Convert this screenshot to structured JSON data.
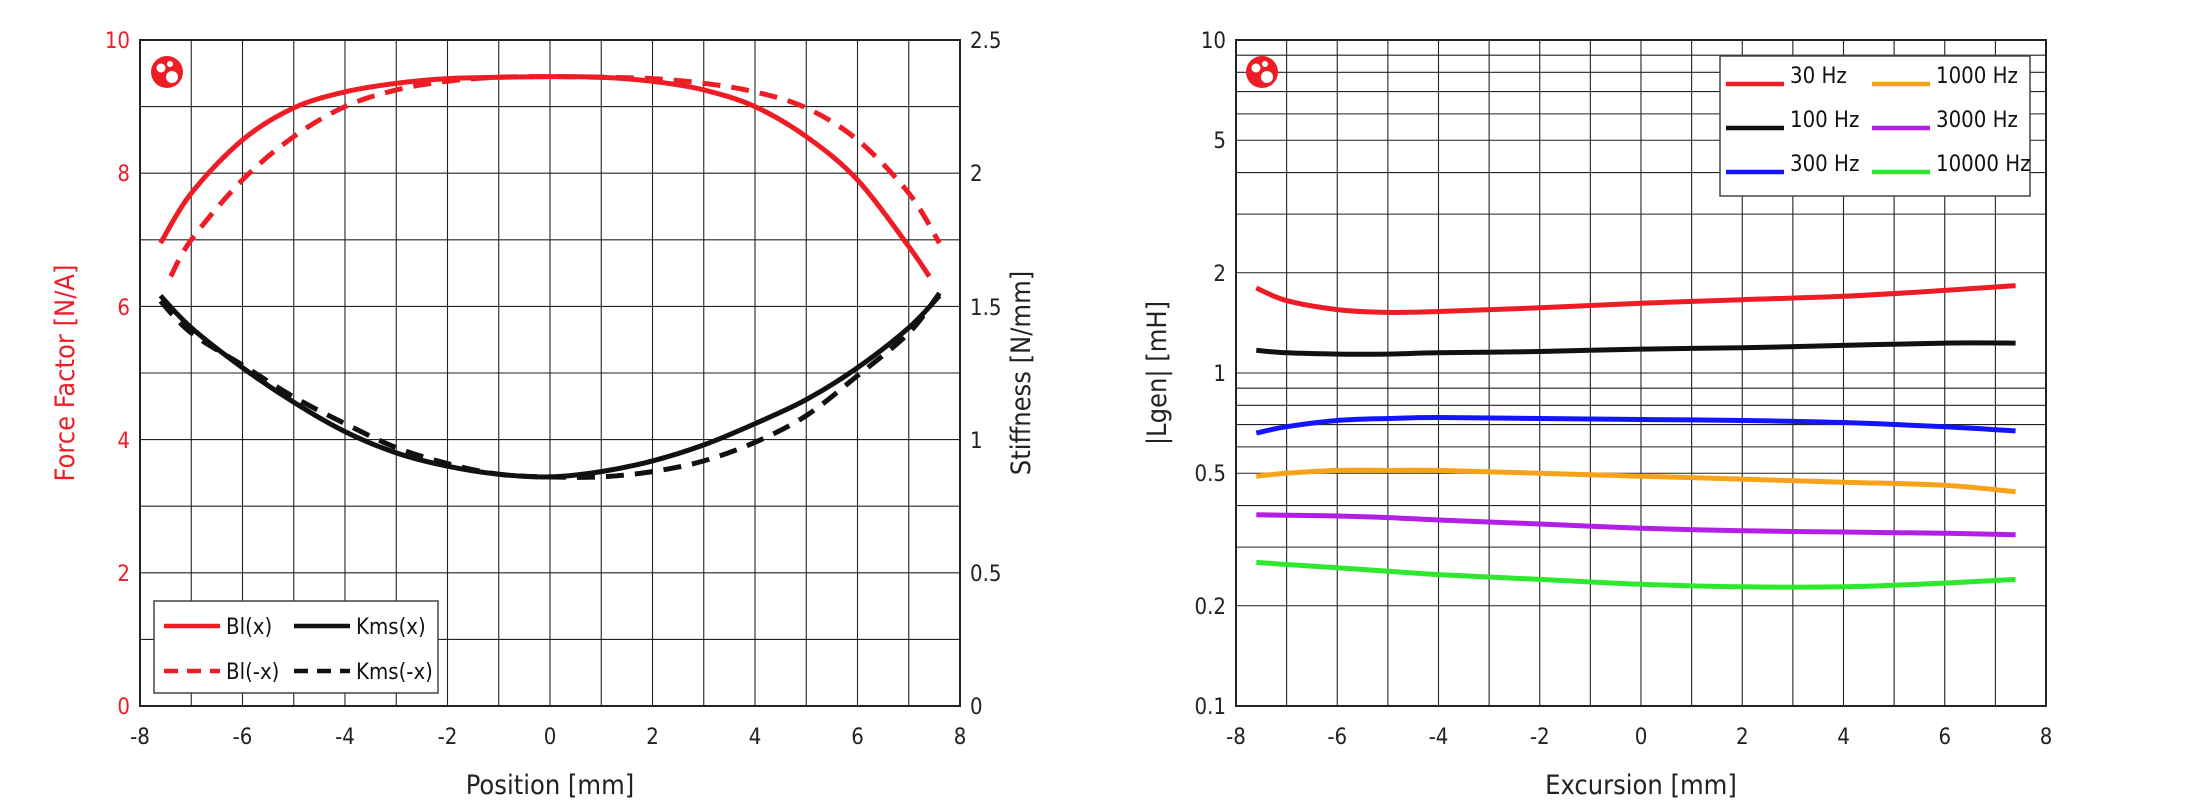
{
  "colors": {
    "red": "#ee1c25",
    "black": "#111111",
    "blue": "#1414ff",
    "orange": "#f7a21b",
    "purple": "#b21fe6",
    "green": "#2ee82e",
    "grid": "#222222"
  },
  "chart_data": [
    {
      "type": "line",
      "title": "",
      "xlabel": "Position [mm]",
      "ylabel": "Force Factor [N/A]",
      "y2label": "Stiffness [N/mm]",
      "xlim": [
        -8,
        8
      ],
      "ylim": [
        0,
        10
      ],
      "y2lim": [
        0,
        2.5
      ],
      "xticks": [
        "-8",
        "-6",
        "-4",
        "-2",
        "0",
        "2",
        "4",
        "6",
        "8"
      ],
      "yticks": [
        "0",
        "2",
        "4",
        "6",
        "8",
        "10"
      ],
      "y2ticks": [
        "0",
        "0.5",
        "1",
        "1.5",
        "2",
        "2.5"
      ],
      "grid": true,
      "logo_icon": "klippel-logo-icon",
      "legend_position": "bottom-left",
      "series": [
        {
          "name": "Bl(x)",
          "axis": "left",
          "color": "red",
          "dash": false,
          "x": [
            -7.6,
            -7,
            -6,
            -5,
            -4,
            -3,
            -2,
            -1,
            0,
            1,
            2,
            3,
            4,
            5,
            6,
            7,
            7.4
          ],
          "y": [
            6.95,
            7.7,
            8.5,
            8.98,
            9.22,
            9.35,
            9.42,
            9.44,
            9.45,
            9.44,
            9.38,
            9.25,
            9.0,
            8.55,
            7.9,
            6.9,
            6.45
          ]
        },
        {
          "name": "Bl(-x)",
          "axis": "left",
          "color": "red",
          "dash": true,
          "x": [
            -7.4,
            -7,
            -6,
            -5,
            -4,
            -3,
            -2,
            -1,
            0,
            1,
            2,
            3,
            4,
            5,
            6,
            7,
            7.6
          ],
          "y": [
            6.45,
            7.0,
            7.9,
            8.55,
            9.0,
            9.25,
            9.38,
            9.44,
            9.45,
            9.44,
            9.42,
            9.35,
            9.22,
            8.98,
            8.5,
            7.7,
            6.95
          ]
        },
        {
          "name": "Kms(x)",
          "axis": "right",
          "color": "black",
          "dash": false,
          "x": [
            -7.6,
            -7,
            -6,
            -5,
            -4,
            -3,
            -2,
            -1,
            0,
            1,
            2,
            3,
            4,
            5,
            6,
            7,
            7.6
          ],
          "y": [
            1.54,
            1.42,
            1.27,
            1.14,
            1.03,
            0.95,
            0.9,
            0.87,
            0.86,
            0.88,
            0.92,
            0.98,
            1.06,
            1.15,
            1.27,
            1.42,
            1.54
          ]
        },
        {
          "name": "Kms(-x)",
          "axis": "right",
          "color": "black",
          "dash": true,
          "x": [
            -7.6,
            -7,
            -6,
            -5,
            -4,
            -3,
            -2,
            -1,
            0,
            1,
            2,
            3,
            4,
            5,
            6,
            7,
            7.6
          ],
          "y": [
            1.52,
            1.4,
            1.28,
            1.16,
            1.06,
            0.97,
            0.91,
            0.87,
            0.86,
            0.86,
            0.88,
            0.92,
            0.99,
            1.09,
            1.24,
            1.4,
            1.55
          ]
        }
      ]
    },
    {
      "type": "line",
      "title": "",
      "xlabel": "Excursion [mm]",
      "ylabel": "|Lgen| [mH]",
      "yscale": "log",
      "xlim": [
        -8,
        8
      ],
      "ylim": [
        0.1,
        10
      ],
      "xticks": [
        "-8",
        "-6",
        "-4",
        "-2",
        "0",
        "2",
        "4",
        "6",
        "8"
      ],
      "yticks": [
        "0.1",
        "0.2",
        "0.5",
        "1",
        "2",
        "5",
        "10"
      ],
      "grid": true,
      "logo_icon": "klippel-logo-icon",
      "legend_position": "top-right",
      "series": [
        {
          "name": "30 Hz",
          "color": "red",
          "x": [
            -7.6,
            -7,
            -6,
            -5,
            -4,
            -2,
            0,
            2,
            4,
            6,
            7.4
          ],
          "y": [
            1.8,
            1.65,
            1.55,
            1.52,
            1.53,
            1.57,
            1.62,
            1.66,
            1.7,
            1.77,
            1.83
          ]
        },
        {
          "name": "100 Hz",
          "color": "black",
          "x": [
            -7.6,
            -7,
            -6,
            -5,
            -4,
            -2,
            0,
            2,
            4,
            6,
            7.4
          ],
          "y": [
            1.17,
            1.15,
            1.14,
            1.14,
            1.15,
            1.16,
            1.18,
            1.19,
            1.21,
            1.23,
            1.23
          ]
        },
        {
          "name": "300 Hz",
          "color": "blue",
          "x": [
            -7.6,
            -7,
            -6,
            -5,
            -4,
            -2,
            0,
            2,
            4,
            6,
            7.4
          ],
          "y": [
            0.66,
            0.69,
            0.72,
            0.73,
            0.735,
            0.73,
            0.725,
            0.72,
            0.71,
            0.69,
            0.67
          ]
        },
        {
          "name": "1000 Hz",
          "color": "orange",
          "x": [
            -7.6,
            -7,
            -6,
            -5,
            -4,
            -2,
            0,
            2,
            4,
            6,
            7.4
          ],
          "y": [
            0.49,
            0.5,
            0.51,
            0.51,
            0.51,
            0.5,
            0.49,
            0.48,
            0.47,
            0.46,
            0.44
          ]
        },
        {
          "name": "3000 Hz",
          "color": "purple",
          "x": [
            -7.6,
            -7,
            -6,
            -5,
            -4,
            -2,
            0,
            2,
            4,
            6,
            7.4
          ],
          "y": [
            0.375,
            0.374,
            0.372,
            0.368,
            0.362,
            0.352,
            0.342,
            0.336,
            0.333,
            0.33,
            0.327
          ]
        },
        {
          "name": "10000 Hz",
          "color": "green",
          "x": [
            -7.6,
            -7,
            -6,
            -5,
            -4,
            -2,
            0,
            2,
            4,
            6,
            7.4
          ],
          "y": [
            0.27,
            0.266,
            0.26,
            0.254,
            0.248,
            0.24,
            0.232,
            0.228,
            0.228,
            0.234,
            0.24
          ]
        }
      ]
    }
  ]
}
